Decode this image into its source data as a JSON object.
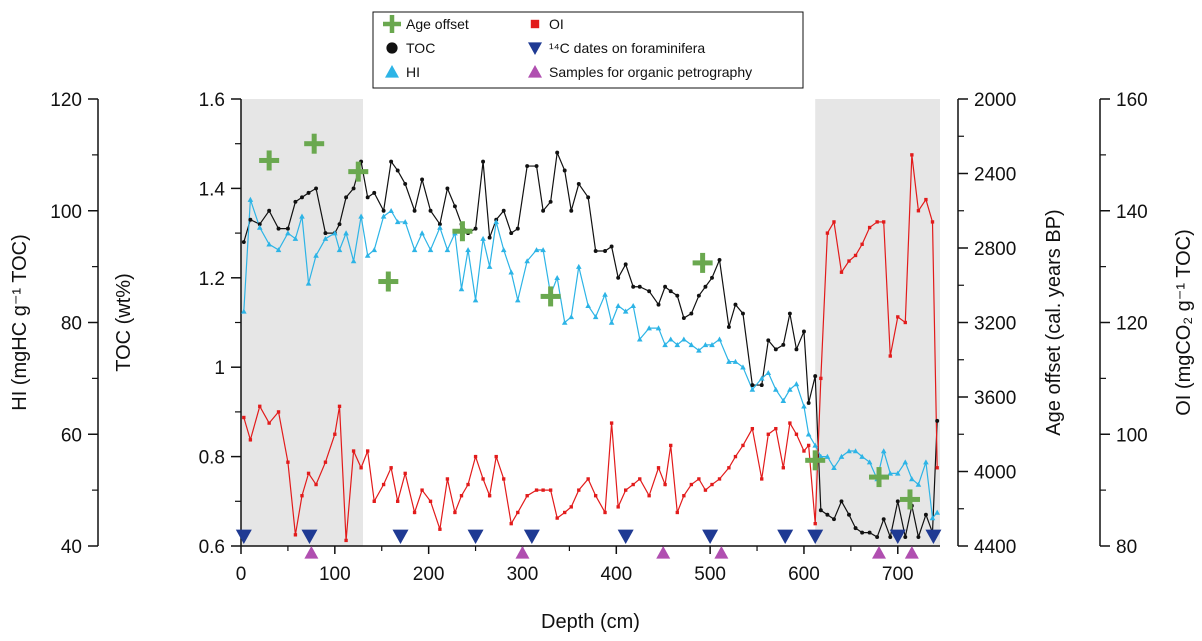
{
  "chart_data": {
    "type": "line",
    "xlabel": "Depth (cm)",
    "xlim": [
      0,
      745
    ],
    "x_ticks": [
      "0",
      "100",
      "200",
      "300",
      "400",
      "500",
      "600",
      "700"
    ],
    "shaded_x_ranges": [
      [
        0,
        130
      ],
      [
        612,
        745
      ]
    ],
    "legend": {
      "placement": "top-center",
      "items": [
        {
          "key": "age",
          "label": "Age offset"
        },
        {
          "key": "oi",
          "label": "OI"
        },
        {
          "key": "toc",
          "label": "TOC"
        },
        {
          "key": "c14",
          "label": "¹⁴C dates on foraminifera"
        },
        {
          "key": "hi",
          "label": "HI"
        },
        {
          "key": "petro",
          "label": "Samples for organic petrography"
        }
      ]
    },
    "axes": {
      "hi": {
        "label": "HI (mgHC g⁻¹ TOC)",
        "range": [
          40,
          120
        ],
        "ticks": [
          "40",
          "60",
          "80",
          "100",
          "120"
        ]
      },
      "toc": {
        "label": "TOC (wt%)",
        "range": [
          0.6,
          1.6
        ],
        "ticks": [
          "0.6",
          "0.8",
          "1",
          "1.2",
          "1.4",
          "1.6"
        ]
      },
      "age": {
        "label": "Age offset (cal. years BP)",
        "range": [
          2000,
          4400
        ],
        "inverted": true,
        "ticks": [
          "2000",
          "2400",
          "2800",
          "3200",
          "3600",
          "4000",
          "4400"
        ]
      },
      "oi": {
        "label": "OI (mgCO₂ g⁻¹ TOC)",
        "range": [
          80,
          160
        ],
        "ticks": [
          "80",
          "100",
          "120",
          "140",
          "160"
        ]
      }
    },
    "colors": {
      "toc": "#111111",
      "hi": "#2db4e6",
      "oi": "#e21b1b",
      "age": "#6aa84f",
      "c14": "#1f3a93",
      "petro": "#b04fb0",
      "shade": "#e6e6e6"
    },
    "series": [
      {
        "name": "TOC",
        "key": "toc",
        "axis": "toc",
        "marker": "circle",
        "x": [
          3,
          10,
          20,
          30,
          40,
          50,
          58,
          65,
          72,
          80,
          90,
          100,
          105,
          112,
          120,
          128,
          135,
          142,
          152,
          160,
          167,
          175,
          185,
          193,
          202,
          212,
          220,
          228,
          235,
          242,
          250,
          258,
          265,
          272,
          280,
          288,
          295,
          305,
          315,
          322,
          330,
          337,
          345,
          352,
          360,
          370,
          378,
          388,
          395,
          402,
          410,
          418,
          425,
          435,
          445,
          452,
          458,
          465,
          472,
          480,
          488,
          495,
          502,
          510,
          520,
          527,
          535,
          545,
          555,
          562,
          570,
          578,
          585,
          592,
          600,
          605,
          612,
          618,
          625,
          632,
          640,
          648,
          655,
          662,
          670,
          678,
          685,
          692,
          700,
          708,
          715,
          722,
          730,
          737,
          742
        ],
        "y": [
          1.28,
          1.33,
          1.32,
          1.35,
          1.31,
          1.31,
          1.37,
          1.38,
          1.39,
          1.4,
          1.3,
          1.3,
          1.32,
          1.38,
          1.4,
          1.46,
          1.38,
          1.39,
          1.35,
          1.46,
          1.44,
          1.41,
          1.35,
          1.42,
          1.35,
          1.32,
          1.4,
          1.36,
          1.32,
          1.3,
          1.31,
          1.46,
          1.29,
          1.33,
          1.35,
          1.3,
          1.31,
          1.45,
          1.45,
          1.35,
          1.37,
          1.48,
          1.44,
          1.35,
          1.41,
          1.38,
          1.26,
          1.26,
          1.27,
          1.2,
          1.23,
          1.18,
          1.18,
          1.17,
          1.14,
          1.18,
          1.17,
          1.16,
          1.11,
          1.12,
          1.16,
          1.18,
          1.2,
          1.24,
          1.09,
          1.14,
          1.12,
          0.96,
          0.96,
          1.06,
          1.04,
          1.05,
          1.12,
          1.04,
          1.08,
          0.92,
          0.98,
          0.68,
          0.67,
          0.66,
          0.7,
          0.67,
          0.64,
          0.63,
          0.63,
          0.62,
          0.66,
          0.62,
          0.7,
          0.62,
          0.69,
          0.62,
          0.67,
          0.63,
          0.88
        ]
      },
      {
        "name": "HI",
        "key": "hi",
        "axis": "hi",
        "marker": "triangle",
        "x": [
          3,
          10,
          20,
          30,
          40,
          50,
          58,
          65,
          72,
          80,
          90,
          100,
          105,
          112,
          120,
          128,
          135,
          142,
          152,
          160,
          167,
          175,
          185,
          193,
          202,
          212,
          220,
          228,
          235,
          242,
          250,
          258,
          265,
          272,
          280,
          288,
          295,
          305,
          315,
          322,
          330,
          337,
          345,
          352,
          360,
          370,
          378,
          388,
          395,
          402,
          410,
          418,
          425,
          435,
          445,
          452,
          458,
          465,
          472,
          480,
          488,
          495,
          502,
          510,
          520,
          527,
          535,
          545,
          555,
          562,
          570,
          578,
          585,
          592,
          600,
          605,
          612,
          618,
          625,
          632,
          640,
          648,
          655,
          662,
          670,
          678,
          685,
          692,
          700,
          708,
          715,
          722,
          730,
          737,
          742
        ],
        "y": [
          82,
          102,
          97,
          94,
          93,
          96,
          95,
          99,
          87,
          92,
          95,
          96,
          93,
          96,
          91,
          99,
          92,
          93,
          99,
          100,
          98,
          98,
          93,
          96,
          93,
          97,
          93,
          96,
          86,
          93,
          84,
          95,
          90,
          98,
          93,
          89,
          84,
          91,
          93,
          93,
          85,
          88,
          80,
          81,
          90,
          83,
          81,
          85,
          80,
          83,
          82,
          83,
          77,
          79,
          79,
          76,
          77,
          76,
          77,
          76,
          75,
          76,
          76,
          77,
          73,
          73,
          72,
          68,
          70,
          71,
          68,
          66,
          68,
          69,
          65,
          60,
          58,
          56,
          56,
          54,
          56,
          57,
          57,
          56,
          55,
          52,
          57,
          53,
          53,
          55,
          52,
          51,
          55,
          45,
          46
        ]
      },
      {
        "name": "OI",
        "key": "oi",
        "axis": "oi",
        "marker": "square",
        "x": [
          3,
          10,
          20,
          30,
          40,
          50,
          58,
          65,
          72,
          80,
          90,
          100,
          105,
          112,
          120,
          128,
          135,
          142,
          152,
          160,
          167,
          175,
          185,
          193,
          202,
          212,
          220,
          228,
          235,
          242,
          250,
          258,
          265,
          272,
          280,
          288,
          295,
          305,
          315,
          322,
          330,
          337,
          345,
          352,
          360,
          370,
          378,
          388,
          395,
          402,
          410,
          418,
          425,
          435,
          445,
          452,
          458,
          465,
          472,
          480,
          488,
          495,
          502,
          510,
          520,
          527,
          535,
          545,
          555,
          562,
          570,
          578,
          585,
          592,
          600,
          605,
          612,
          618,
          625,
          632,
          640,
          648,
          655,
          662,
          670,
          678,
          685,
          692,
          700,
          708,
          715,
          722,
          730,
          737,
          742
        ],
        "y": [
          103,
          99,
          105,
          102,
          104,
          95,
          82,
          89,
          93,
          91,
          95,
          100,
          105,
          81,
          97,
          94,
          97,
          88,
          91,
          94,
          88,
          93,
          86,
          90,
          88,
          83,
          92,
          86,
          89,
          91,
          96,
          92,
          89,
          96,
          92,
          84,
          86,
          89,
          90,
          90,
          90,
          85,
          86,
          87,
          90,
          92,
          89,
          86,
          102,
          87,
          90,
          91,
          92,
          89,
          94,
          91,
          98,
          86,
          89,
          91,
          92,
          90,
          91,
          92,
          94,
          96,
          98,
          101,
          92,
          100,
          101,
          94,
          102,
          100,
          97,
          98,
          84,
          110,
          136,
          138,
          129,
          131,
          132,
          134,
          137,
          138,
          138,
          114,
          121,
          120,
          150,
          140,
          142,
          138,
          94
        ]
      },
      {
        "name": "Age offset",
        "key": "age",
        "axis": "age",
        "marker": "cross",
        "x": [
          30,
          78,
          125,
          157,
          236,
          330,
          492,
          612,
          680,
          713
        ],
        "y": [
          2330,
          2240,
          2390,
          2980,
          2710,
          3060,
          2880,
          3940,
          4030,
          4150
        ]
      },
      {
        "name": "¹⁴C dates on foraminifera",
        "key": "c14",
        "axis": "toc",
        "marker": "triangle-down",
        "x": [
          3,
          73,
          170,
          250,
          310,
          410,
          500,
          580,
          612,
          700,
          738
        ],
        "y": [
          0.62,
          0.62,
          0.62,
          0.62,
          0.62,
          0.62,
          0.62,
          0.62,
          0.62,
          0.62,
          0.62
        ]
      },
      {
        "name": "Samples for organic petrography",
        "key": "petro",
        "axis": "toc",
        "marker": "triangle-up",
        "x": [
          75,
          300,
          450,
          512,
          680,
          715
        ],
        "y": [
          0.58,
          0.58,
          0.58,
          0.58,
          0.58,
          0.58
        ]
      }
    ]
  }
}
